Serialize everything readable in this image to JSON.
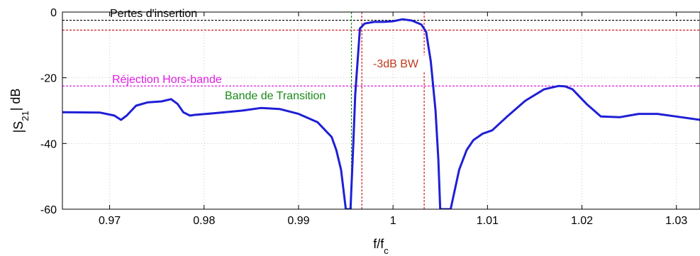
{
  "chart_data": {
    "type": "line",
    "xlabel": "f/f",
    "xlabel_sub": "c",
    "ylabel_main": "|S",
    "ylabel_sub": "21",
    "ylabel_tail": "| dB",
    "xlim": [
      0.965,
      1.0325
    ],
    "ylim": [
      -60,
      0
    ],
    "grid": true,
    "x_ticks": [
      0.97,
      0.98,
      0.99,
      1.0,
      1.01,
      1.02,
      1.03
    ],
    "x_tick_labels": [
      "0.97",
      "0.98",
      "0.99",
      "1",
      "1.01",
      "1.02",
      "1.03"
    ],
    "y_ticks": [
      0,
      -20,
      -40,
      -60
    ],
    "y_tick_labels": [
      "0",
      "-20",
      "-40",
      "-60"
    ],
    "series": [
      {
        "color": "#1f1fd6",
        "x": [
          0.965,
          0.969,
          0.9705,
          0.9712,
          0.9718,
          0.9728,
          0.974,
          0.9755,
          0.9765,
          0.9772,
          0.9778,
          0.9785,
          0.979,
          0.981,
          0.984,
          0.986,
          0.988,
          0.99,
          0.992,
          0.9935,
          0.994,
          0.9945,
          0.995,
          0.9955,
          0.9958,
          0.996,
          0.9965,
          0.997,
          0.998,
          0.999,
          1.0,
          1.001,
          1.002,
          1.003,
          1.0035,
          1.004,
          1.0045,
          1.0048,
          1.005,
          1.0055,
          1.0061,
          1.007,
          1.0078,
          1.0085,
          1.0095,
          1.0105,
          1.012,
          1.014,
          1.016,
          1.0175,
          1.0182,
          1.019,
          1.0205,
          1.022,
          1.024,
          1.026,
          1.028,
          1.03,
          1.0325
        ],
        "y": [
          -30.5,
          -30.6,
          -31.5,
          -32.8,
          -31.5,
          -28.5,
          -27.5,
          -27.2,
          -26.5,
          -28.0,
          -30.5,
          -31.5,
          -31.3,
          -30.8,
          -30.0,
          -29.2,
          -29.5,
          -31.0,
          -33.5,
          -38.0,
          -42.0,
          -48.0,
          -60.0,
          -60.0,
          -40.0,
          -25.0,
          -5.0,
          -3.5,
          -3.0,
          -3.0,
          -2.8,
          -2.2,
          -2.6,
          -3.8,
          -6.0,
          -15.0,
          -30.0,
          -45.0,
          -60.0,
          -60.0,
          -60.0,
          -48.0,
          -42.0,
          -39.0,
          -37.0,
          -36.0,
          -32.0,
          -27.0,
          -23.5,
          -22.5,
          -22.6,
          -23.5,
          -28.0,
          -31.8,
          -32.0,
          -31.0,
          -31.0,
          -31.8,
          -32.8
        ]
      }
    ],
    "reference_lines": [
      {
        "orientation": "horizontal",
        "value": -2.5,
        "color": "#000000"
      },
      {
        "orientation": "horizontal",
        "value": -5.5,
        "color": "#d01c1c"
      },
      {
        "orientation": "horizontal",
        "value": -22.5,
        "color": "#e01ee0"
      },
      {
        "orientation": "vertical",
        "value": 0.9956,
        "color": "#1a8a1a"
      },
      {
        "orientation": "vertical",
        "value": 0.9967,
        "color": "#d01c1c"
      },
      {
        "orientation": "vertical",
        "value": 1.0033,
        "color": "#d01c1c"
      }
    ],
    "annotations": [
      {
        "id": "pertes",
        "text": "Pertes d'insertion",
        "color": "#000000"
      },
      {
        "id": "rejection",
        "text": "Réjection Hors-bande",
        "color": "#e01ee0"
      },
      {
        "id": "transition",
        "text": "Bande de Transition",
        "color": "#1a8a1a"
      },
      {
        "id": "bw",
        "text": "-3dB BW",
        "color": "#c0391b"
      }
    ]
  }
}
